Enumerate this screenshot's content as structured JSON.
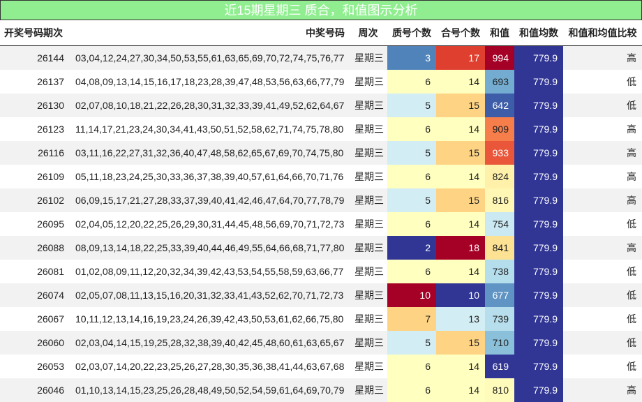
{
  "header": {
    "title": "近15期星期三 质合，和值图示分析"
  },
  "table": {
    "columns": [
      "开奖号码期次",
      "中奖号码",
      "周次",
      "质号个数",
      "合号个数",
      "和值",
      "和值均数",
      "和值和均值比较"
    ],
    "rows": [
      [
        26144,
        "03,04,12,24,27,30,34,50,53,55,61,63,65,69,70,72,74,75,76,77",
        "星期三",
        3,
        17,
        994,
        779.9,
        "高"
      ],
      [
        26137,
        "04,08,09,13,14,15,16,17,18,23,28,39,47,48,53,56,63,66,77,79",
        "星期三",
        6,
        14,
        693,
        779.9,
        "低"
      ],
      [
        26130,
        "02,07,08,10,18,21,22,26,28,30,31,32,33,39,41,49,52,62,64,67",
        "星期三",
        5,
        15,
        642,
        779.9,
        "低"
      ],
      [
        26123,
        "11,14,17,21,23,24,30,34,41,43,50,51,52,58,62,71,74,75,78,80",
        "星期三",
        6,
        14,
        909,
        779.9,
        "高"
      ],
      [
        26116,
        "03,11,16,22,27,31,32,36,40,47,48,58,62,65,67,69,70,74,75,80",
        "星期三",
        5,
        15,
        933,
        779.9,
        "高"
      ],
      [
        26109,
        "05,11,18,23,24,25,30,33,36,37,38,39,40,57,61,64,66,70,71,76",
        "星期三",
        6,
        14,
        824,
        779.9,
        "高"
      ],
      [
        26102,
        "06,09,15,17,21,27,28,33,37,39,40,41,42,46,47,64,70,77,78,79",
        "星期三",
        5,
        15,
        816,
        779.9,
        "高"
      ],
      [
        26095,
        "02,04,05,12,20,22,25,26,29,30,31,44,45,48,56,69,70,71,72,73",
        "星期三",
        6,
        14,
        754,
        779.9,
        "低"
      ],
      [
        26088,
        "08,09,13,14,18,22,25,33,39,40,44,46,49,55,64,66,68,71,77,80",
        "星期三",
        2,
        18,
        841,
        779.9,
        "高"
      ],
      [
        26081,
        "01,02,08,09,11,12,20,32,34,39,42,43,53,54,55,58,59,63,66,77",
        "星期三",
        6,
        14,
        738,
        779.9,
        "低"
      ],
      [
        26074,
        "02,05,07,08,11,13,15,16,20,31,32,33,41,43,52,62,70,71,72,73",
        "星期三",
        10,
        10,
        677,
        779.9,
        "低"
      ],
      [
        26067,
        "10,11,12,13,14,16,19,23,24,26,39,42,43,50,53,61,62,66,75,80",
        "星期三",
        7,
        13,
        739,
        779.9,
        "低"
      ],
      [
        26060,
        "02,03,04,14,15,19,25,28,32,38,39,40,42,45,48,60,61,63,65,67",
        "星期三",
        5,
        15,
        710,
        779.9,
        "低"
      ],
      [
        26053,
        "02,03,07,14,20,22,23,25,26,27,28,30,35,36,38,41,44,63,67,68",
        "星期三",
        6,
        14,
        619,
        779.9,
        "低"
      ],
      [
        26046,
        "01,10,13,14,15,23,25,26,28,48,49,50,52,54,59,61,64,69,70,79",
        "星期三",
        6,
        14,
        810,
        779.9,
        "高"
      ]
    ]
  }
}
